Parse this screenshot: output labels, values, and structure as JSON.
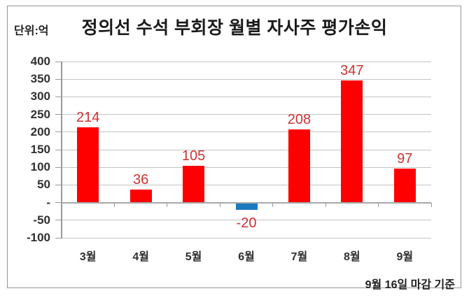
{
  "chart_data": {
    "type": "bar",
    "title": "정의선 수석 부회장 월별 자사주 평가손익",
    "unit_label": "단위:억",
    "footnote": "9월 16일 마감 기준",
    "categories": [
      "3월",
      "4월",
      "5월",
      "6월",
      "7월",
      "8월",
      "9월"
    ],
    "values": [
      214,
      36,
      105,
      -20,
      208,
      347,
      97
    ],
    "ylim": [
      -100,
      400
    ],
    "ytick_step": 50,
    "ytick_labels": [
      "400",
      "350",
      "300",
      "250",
      "200",
      "150",
      "100",
      "50",
      "-",
      "-50",
      "-100"
    ],
    "grid": true,
    "legend": "none",
    "colors": {
      "positive_bar": "#fe0000",
      "negative_bar": "#1b7ac0",
      "value_label": "#cc3333",
      "gridline": "#c4c4c4",
      "zero_line": "#a8a8a8",
      "axis": "#999999",
      "tick_text": "#303030"
    }
  }
}
